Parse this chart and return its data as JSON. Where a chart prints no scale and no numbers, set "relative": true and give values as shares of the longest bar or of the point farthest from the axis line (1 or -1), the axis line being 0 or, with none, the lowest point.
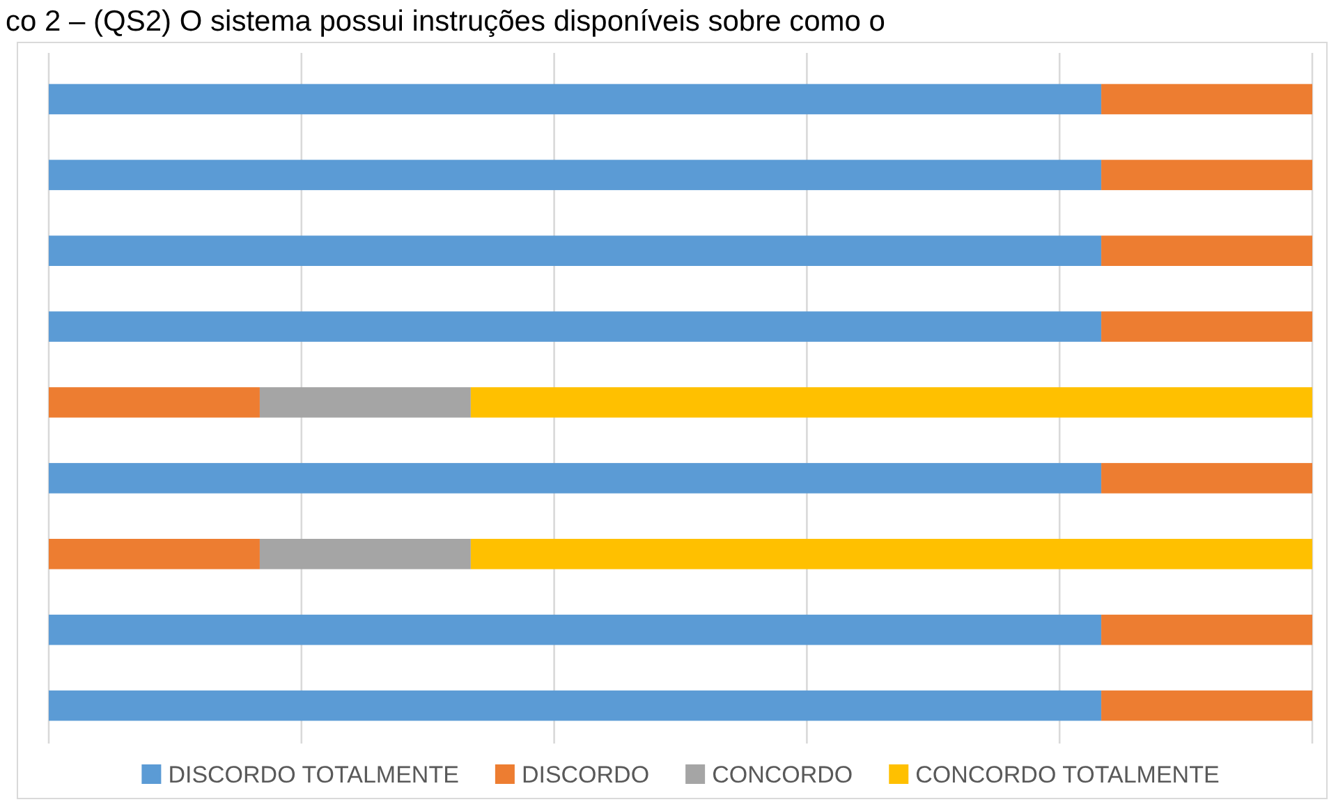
{
  "chart_data": {
    "type": "bar",
    "orientation": "horizontal",
    "stacked": true,
    "relative": true,
    "title": "co 2 – (QS2) O sistema possui instruções disponíveis sobre como o",
    "categories": [
      null,
      null,
      null,
      null,
      null,
      null,
      null,
      null,
      null
    ],
    "series": [
      {
        "name": "DISCORDO TOTALMENTE",
        "color": "#5b9bd5",
        "values": [
          0.833,
          0.833,
          0.833,
          0.833,
          null,
          0.833,
          null,
          0.833,
          0.833
        ]
      },
      {
        "name": "DISCORDO",
        "color": "#ed7d31",
        "values": [
          0.167,
          0.167,
          0.167,
          0.167,
          0.167,
          0.167,
          0.167,
          0.167,
          0.167
        ]
      },
      {
        "name": "CONCORDO",
        "color": "#a5a5a5",
        "values": [
          null,
          null,
          null,
          null,
          0.167,
          null,
          0.167,
          null,
          null
        ]
      },
      {
        "name": "CONCORDO TOTALMENTE",
        "color": "#ffc000",
        "values": [
          null,
          null,
          null,
          null,
          0.666,
          null,
          0.666,
          null,
          null
        ]
      }
    ],
    "grid": "x",
    "legend": "bottom"
  }
}
